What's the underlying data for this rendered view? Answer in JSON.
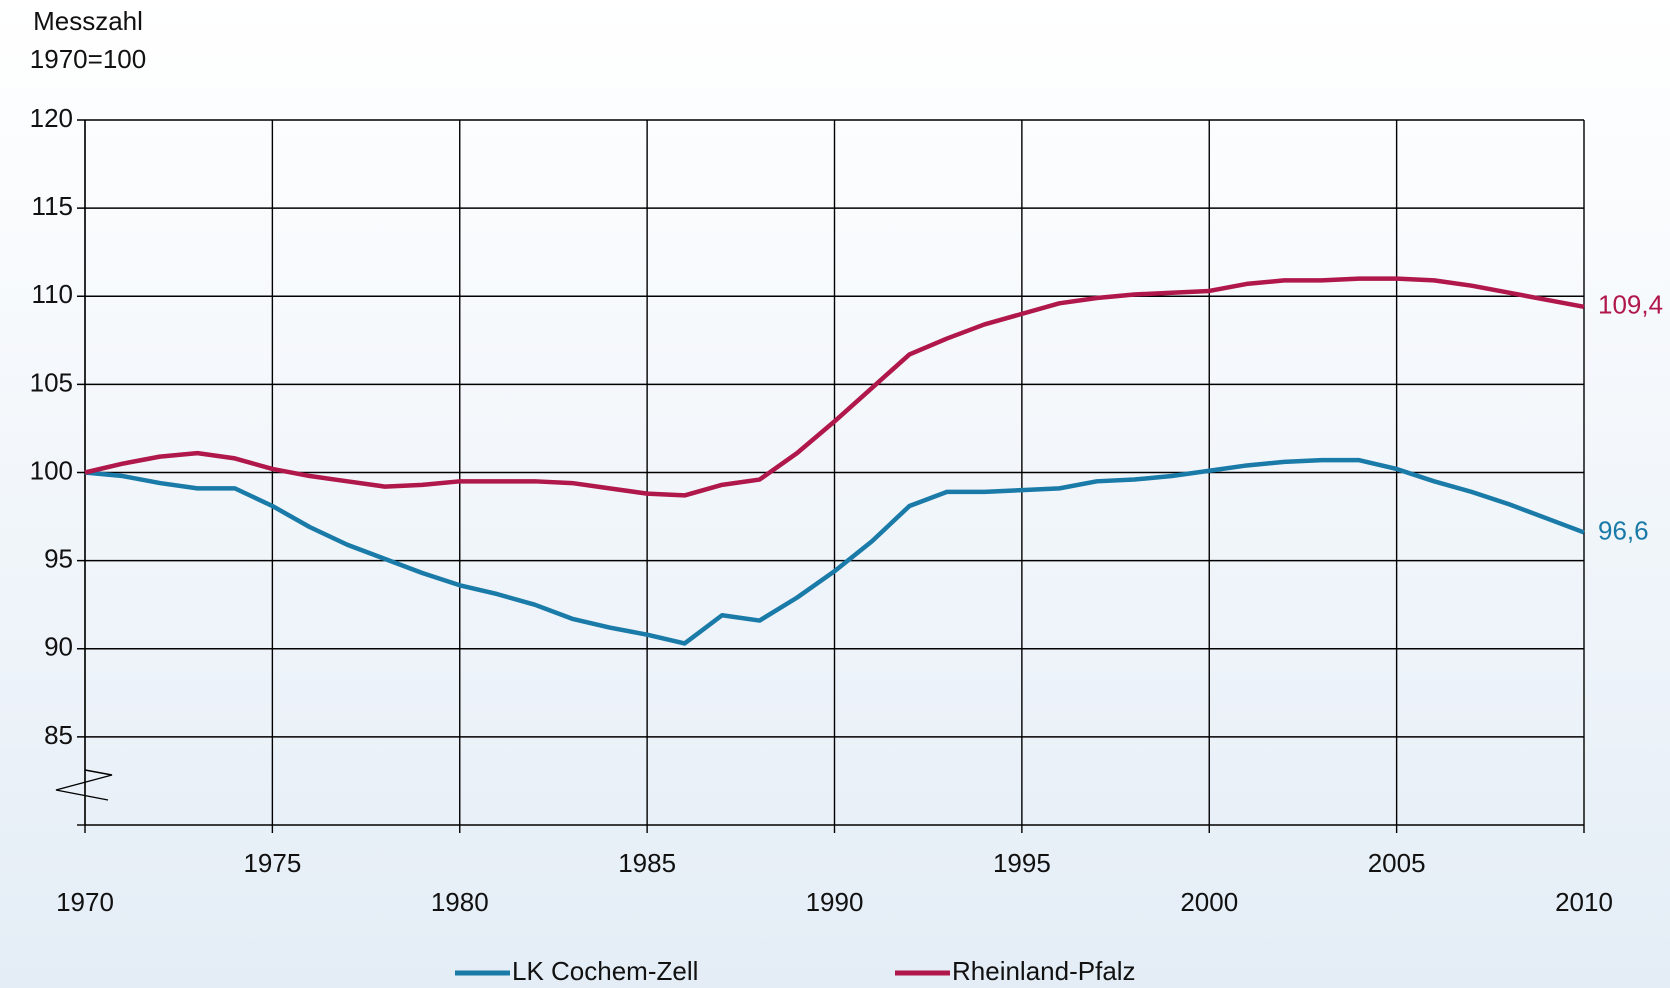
{
  "chart_data": {
    "type": "line",
    "y_label_lines": [
      "Messzahl",
      "1970=100"
    ],
    "x": [
      1970,
      1971,
      1972,
      1973,
      1974,
      1975,
      1976,
      1977,
      1978,
      1979,
      1980,
      1981,
      1982,
      1983,
      1984,
      1985,
      1986,
      1987,
      1988,
      1989,
      1990,
      1991,
      1992,
      1993,
      1994,
      1995,
      1996,
      1997,
      1998,
      1999,
      2000,
      2001,
      2002,
      2003,
      2004,
      2005,
      2006,
      2007,
      2008,
      2009,
      2010
    ],
    "series": [
      {
        "name": "LK Cochem-Zell",
        "color": "#1a7aa8",
        "end_label": "96,6",
        "values": [
          100,
          99.8,
          99.4,
          99.1,
          99.1,
          98.1,
          96.9,
          95.9,
          95.1,
          94.3,
          93.6,
          93.1,
          92.5,
          91.7,
          91.2,
          90.8,
          90.3,
          91.9,
          91.6,
          92.9,
          94.4,
          96.1,
          98.1,
          98.9,
          98.9,
          99.0,
          99.1,
          99.5,
          99.6,
          99.8,
          100.1,
          100.4,
          100.6,
          100.7,
          100.7,
          100.2,
          99.5,
          98.9,
          98.2,
          97.4,
          96.6
        ]
      },
      {
        "name": "Rheinland-Pfalz",
        "color": "#b0174a",
        "end_label": "109,4",
        "values": [
          100,
          100.5,
          100.9,
          101.1,
          100.8,
          100.2,
          99.8,
          99.5,
          99.2,
          99.3,
          99.5,
          99.5,
          99.5,
          99.4,
          99.1,
          98.8,
          98.7,
          99.3,
          99.6,
          101.1,
          102.9,
          104.8,
          106.7,
          107.6,
          108.4,
          109.0,
          109.6,
          109.9,
          110.1,
          110.2,
          110.3,
          110.7,
          110.9,
          110.9,
          111.0,
          111.0,
          110.9,
          110.6,
          110.2,
          109.8,
          109.4
        ]
      }
    ],
    "xlim": [
      1970,
      2010
    ],
    "xticks": [
      1970,
      1975,
      1980,
      1985,
      1990,
      1995,
      2000,
      2005,
      2010
    ],
    "ylim": [
      80,
      120
    ],
    "yticks": [
      85,
      90,
      95,
      100,
      105,
      110,
      115,
      120
    ],
    "grid": true
  }
}
